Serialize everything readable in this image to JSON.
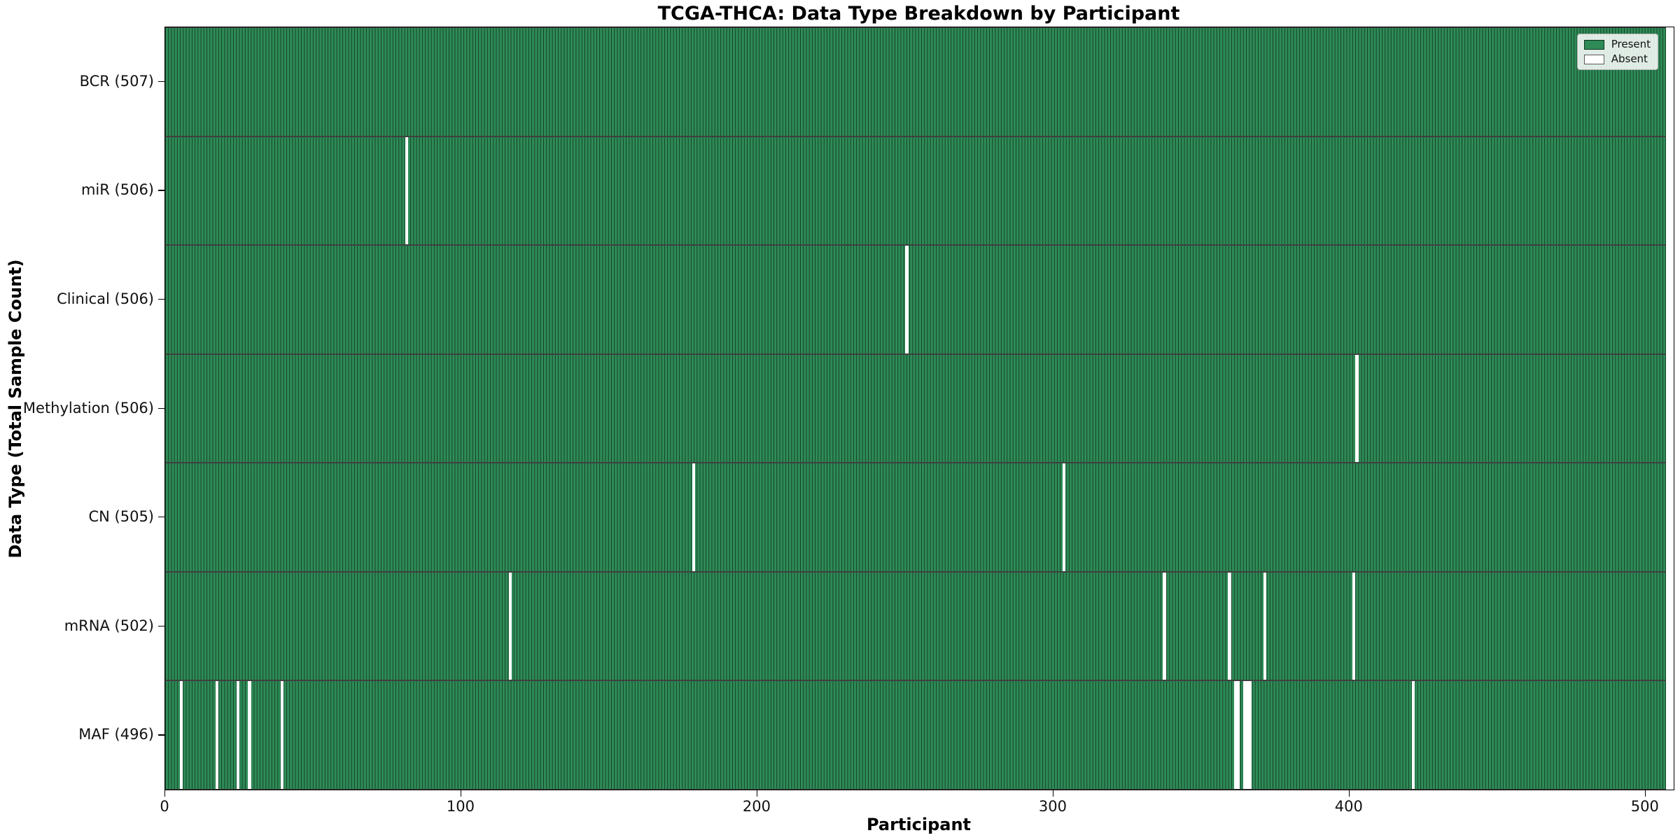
{
  "chart_data": {
    "type": "heatmap",
    "title": "TCGA-THCA: Data Type Breakdown by Participant",
    "xlabel": "Participant",
    "ylabel": "Data Type (Total Sample Count)",
    "x_ticks": [
      0,
      100,
      200,
      300,
      400,
      500
    ],
    "x_max": 509.5,
    "total_participants": 507,
    "grid": false,
    "legend_position": "upper-right",
    "legend": [
      {
        "label": "Present",
        "color": "#2e8b57"
      },
      {
        "label": "Absent",
        "color": "#ffffff"
      }
    ],
    "rows": [
      {
        "label": "BCR (507)",
        "data_type": "BCR",
        "present_count": 507,
        "absent_participants": []
      },
      {
        "label": "miR (506)",
        "data_type": "miR",
        "present_count": 506,
        "absent_participants": [
          81
        ]
      },
      {
        "label": "Clinical (506)",
        "data_type": "Clinical",
        "present_count": 506,
        "absent_participants": [
          250
        ]
      },
      {
        "label": "Methylation (506)",
        "data_type": "Methylation",
        "present_count": 506,
        "absent_participants": [
          402
        ]
      },
      {
        "label": "CN (505)",
        "data_type": "CN",
        "present_count": 505,
        "absent_participants": [
          178,
          303
        ]
      },
      {
        "label": "mRNA (502)",
        "data_type": "mRNA",
        "present_count": 502,
        "absent_participants": [
          116,
          337,
          359,
          371,
          401
        ]
      },
      {
        "label": "MAF (496)",
        "data_type": "MAF",
        "present_count": 496,
        "absent_participants": [
          5,
          17,
          24,
          28,
          39,
          361,
          362,
          364,
          365,
          366,
          421
        ]
      }
    ],
    "colors": {
      "present_fill": "#2e8b57",
      "bar_edge": "rgba(0,0,0,0.55)",
      "absent_fill": "#ffffff",
      "spine": "#000000"
    }
  }
}
